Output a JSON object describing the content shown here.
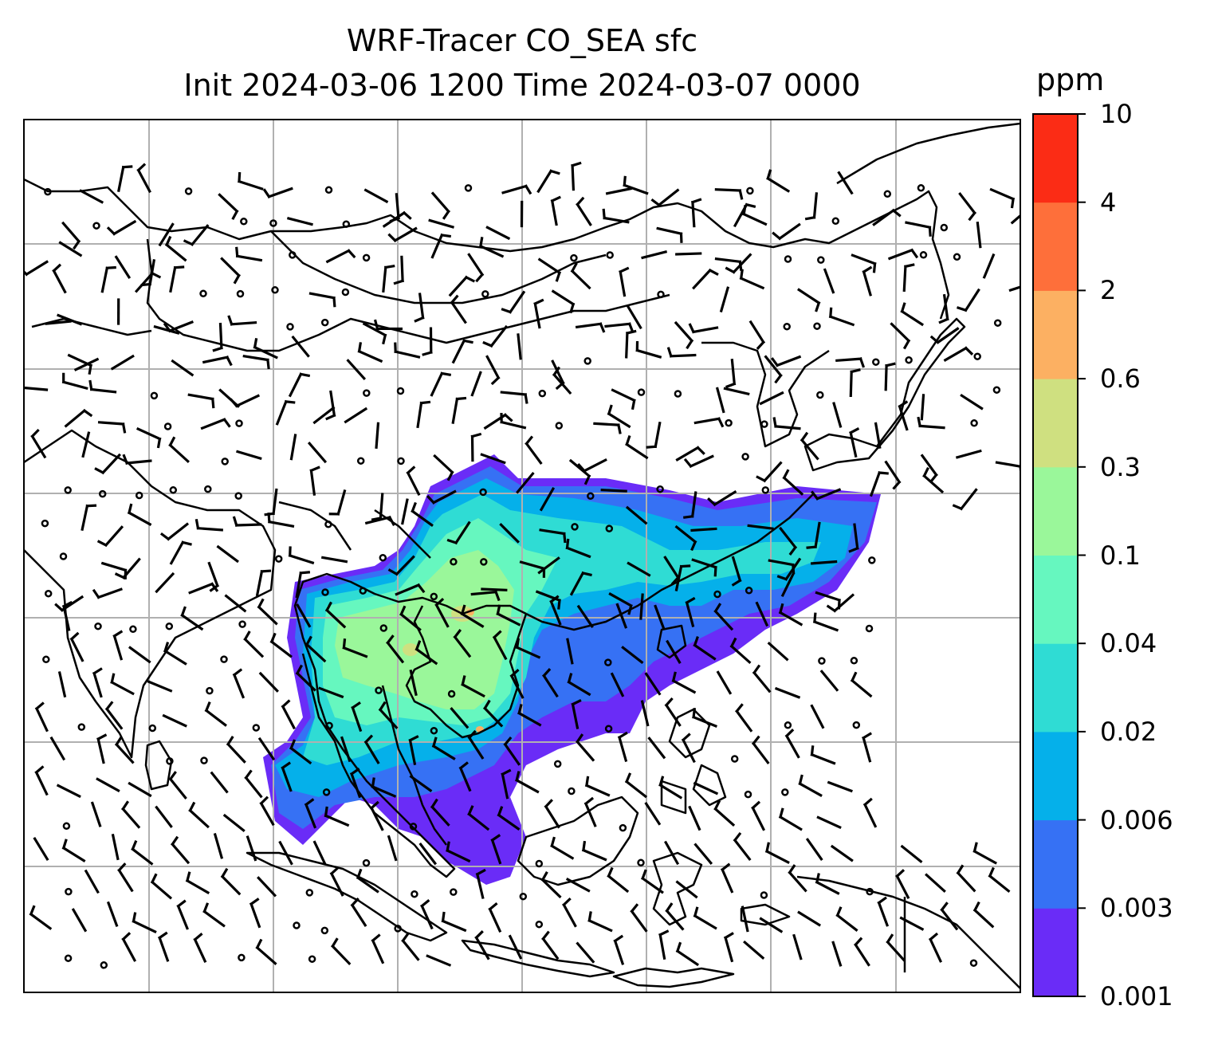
{
  "title": {
    "line1": "WRF-Tracer CO_SEA sfc",
    "line2": "Init 2024-03-06 1200 Time 2024-03-07 0000"
  },
  "colorbar": {
    "unit": "ppm",
    "ticks": [
      "0.001",
      "0.003",
      "0.006",
      "0.02",
      "0.04",
      "0.1",
      "0.3",
      "0.6",
      "2",
      "4",
      "10"
    ],
    "colors": [
      "#6a2cf7",
      "#3671f4",
      "#05b0ea",
      "#2fdcd4",
      "#66f7bf",
      "#9af79a",
      "#cfe080",
      "#fcb062",
      "#fe6f3a",
      "#fb2c15"
    ]
  },
  "map": {
    "gridlines": true,
    "coastline_color": "#000000",
    "gridline_color": "#b0b0b0",
    "wind_barbs": true
  }
}
